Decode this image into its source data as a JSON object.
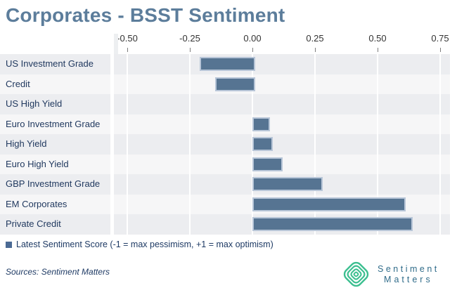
{
  "title": "Corporates - BSST Sentiment",
  "legend": {
    "label": "Latest Sentiment Score (-1 = max pessimism, +1 = max optimism)"
  },
  "sources": "Sources: Sentiment Matters",
  "logo": {
    "icon": "concentric-diamond-icon",
    "line1": "Sentiment",
    "line2": "Matters"
  },
  "colors": {
    "title": "#5c7d9b",
    "bar_fill": "#567492",
    "bar_border": "#b8c6d8",
    "row_stripe_gray": "#ecedf0",
    "row_stripe_light": "#f6f6f7",
    "gridline": "#ffffff",
    "axis_text": "#333333",
    "category_text": "#21395f",
    "legend_marker": "#4b6a94",
    "legend_text": "#1e3a64",
    "sources_text": "#1e3a64",
    "logo_green": "#3cbf90",
    "logo_text": "#306c8a"
  },
  "chart_data": {
    "type": "bar",
    "orientation": "horizontal",
    "title": "Corporates - BSST Sentiment",
    "series_name": "Latest Sentiment Score",
    "categories": [
      "US Investment Grade",
      "Credit",
      "US High Yield",
      "Euro Investment Grade",
      "High Yield",
      "Euro High Yield",
      "GBP Investment Grade",
      "EM Corporates",
      "Private Credit"
    ],
    "values": [
      -0.21,
      -0.15,
      0.0,
      0.06,
      0.07,
      0.11,
      0.27,
      0.6,
      0.63
    ],
    "x_tick_values": [
      -0.5,
      -0.25,
      0.0,
      0.25,
      0.5,
      0.75
    ],
    "x_tick_labels": [
      "-0.50",
      "-0.25",
      "0.00",
      "0.25",
      "0.50",
      "0.75"
    ],
    "xlim": [
      -0.55,
      0.79
    ],
    "grid": "vertical white gridlines on alternating striped rows",
    "axis_position": "top",
    "legend_position": "bottom-left"
  }
}
